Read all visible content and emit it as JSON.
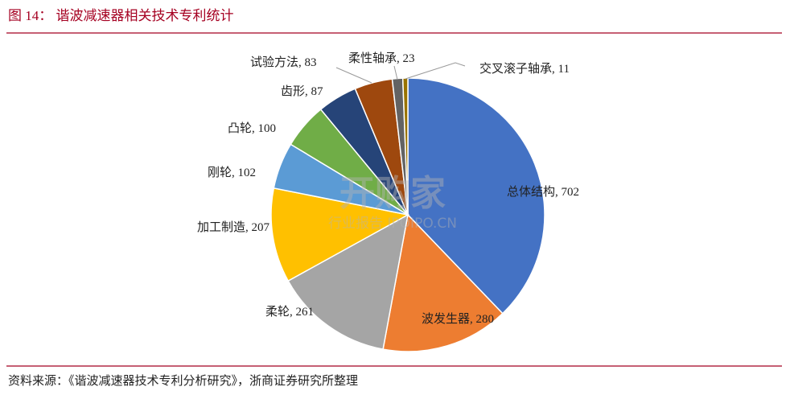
{
  "header": {
    "title": "图 14：  谐波减速器相关技术专利统计"
  },
  "chart_data": {
    "type": "pie",
    "values": [
      702,
      280,
      261,
      207,
      102,
      100,
      87,
      83,
      23,
      11
    ],
    "value_labels": [
      "总体结构, 702",
      "波发生器, 280",
      "柔轮, 261",
      "加工制造, 207",
      "刚轮, 102",
      "凸轮, 100",
      "齿形, 87",
      "试验方法, 83",
      "柔性轴承, 23",
      "交叉滚子轴承, 11"
    ],
    "colors": [
      "#4472c4",
      "#ed7d31",
      "#a5a5a5",
      "#ffc000",
      "#5b9bd5",
      "#70ad47",
      "#264478",
      "#9e480e",
      "#636363",
      "#997300"
    ]
  },
  "watermark": {
    "brand": "开购家",
    "sub": "行业报告 IPOIPO.CN"
  },
  "footer": {
    "source": "资料来源：《谐波减速器技术专利分析研究》，浙商证券研究所整理"
  }
}
